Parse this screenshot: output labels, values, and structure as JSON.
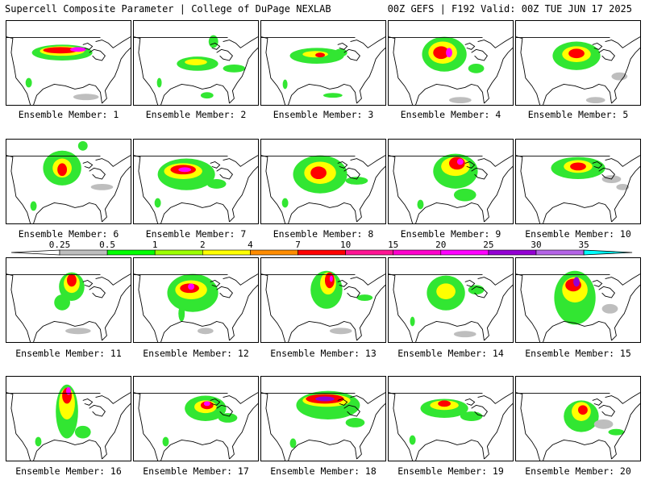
{
  "header": {
    "left": "Supercell Composite Parameter | College of DuPage NEXLAB",
    "right": "00Z GEFS | F192 Valid: 00Z TUE JUN 17 2025"
  },
  "member_prefix": "Ensemble Member: ",
  "members": [
    {
      "label": "Ensemble Member: 1"
    },
    {
      "label": "Ensemble Member: 2"
    },
    {
      "label": "Ensemble Member: 3"
    },
    {
      "label": "Ensemble Member: 4"
    },
    {
      "label": "Ensemble Member: 5"
    },
    {
      "label": "Ensemble Member: 6"
    },
    {
      "label": "Ensemble Member: 7"
    },
    {
      "label": "Ensemble Member: 8"
    },
    {
      "label": "Ensemble Member: 9"
    },
    {
      "label": "Ensemble Member: 10"
    },
    {
      "label": "Ensemble Member: 11"
    },
    {
      "label": "Ensemble Member: 12"
    },
    {
      "label": "Ensemble Member: 13"
    },
    {
      "label": "Ensemble Member: 14"
    },
    {
      "label": "Ensemble Member: 15"
    },
    {
      "label": "Ensemble Member: 16"
    },
    {
      "label": "Ensemble Member: 17"
    },
    {
      "label": "Ensemble Member: 18"
    },
    {
      "label": "Ensemble Member: 19"
    },
    {
      "label": "Ensemble Member: 20"
    }
  ],
  "legend": {
    "ticks": [
      "0.25",
      "0.5",
      "1",
      "2",
      "4",
      "7",
      "10",
      "15",
      "20",
      "25",
      "30",
      "35"
    ],
    "colors": [
      "#bebebe",
      "#00ff00",
      "#9cff00",
      "#ffff00",
      "#ff8c00",
      "#ff0000",
      "#ff1493",
      "#ff00cc",
      "#ff00ff",
      "#9400d3",
      "#b464e6",
      "#00ffff"
    ]
  },
  "colors": {
    "gray": "#bebebe",
    "green": "#32e632",
    "lime": "#9cff00",
    "yellow": "#ffff00",
    "orange": "#ff8c00",
    "red": "#ff0000",
    "magenta": "#ff00ff",
    "purple": "#9400d3"
  }
}
